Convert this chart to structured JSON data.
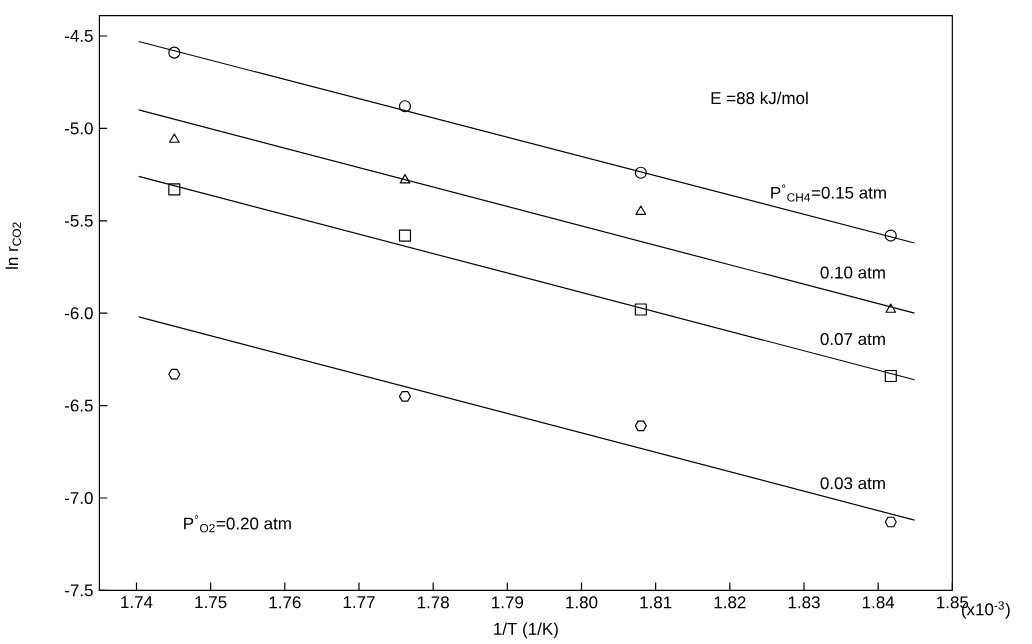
{
  "chart_data": {
    "type": "scatter",
    "xlabel": "1/T (1/K)",
    "ylabel": "ln r$_{CO2}$",
    "annotations": [
      "E =88 kJ/mol",
      "P$^{°}$$_{O2}$=0.20 atm",
      "(x10$^{-3}$)"
    ],
    "xlim": [
      1.735,
      1.85
    ],
    "ylim": [
      -7.5,
      -4.39
    ],
    "xticks": [
      1.74,
      1.75,
      1.76,
      1.77,
      1.78,
      1.79,
      {
        "value": 1.8,
        "label": "1.80"
      },
      1.81,
      1.82,
      1.83,
      1.84,
      1.85
    ],
    "yticks": [
      -4.5,
      {
        "value": -5,
        "label": "-5.0"
      },
      -5.5,
      {
        "value": -6,
        "label": "-6.0"
      },
      -6.5,
      {
        "value": -7,
        "label": "-7.0"
      },
      -7.5
    ],
    "grid": false,
    "legend": false,
    "series": [
      {
        "marker": "circle",
        "color": "#000000",
        "x": [
          1.7451,
          1.7762,
          1.808,
          1.8417
        ],
        "values": [
          -4.59,
          -4.88,
          -5.24,
          -5.58
        ]
      },
      {
        "marker": "triangle",
        "color": "#000000",
        "x": [
          1.7451,
          1.7762,
          1.808,
          1.8417
        ],
        "values": [
          -5.06,
          -5.28,
          -5.45,
          -5.98
        ]
      },
      {
        "marker": "square",
        "color": "#000000",
        "x": [
          1.7451,
          1.7762,
          1.808,
          1.8417
        ],
        "values": [
          -5.33,
          -5.58,
          -5.98,
          -6.34
        ]
      },
      {
        "color": "#000000",
        "x": [
          1.7451,
          1.7762,
          1.808,
          1.8417
        ],
        "values": [
          -6.33,
          -6.45,
          -6.61,
          -7.13
        ]
      },
      {
        "type": "line",
        "name": "P$^{°}$$_{CH4}$=0.15 atm",
        "marker": "none",
        "line_style": "solid",
        "color": "#000000",
        "x": [
          1.7403,
          1.8449
        ],
        "values": [
          -4.53,
          -5.62
        ]
      },
      {
        "type": "line",
        "name": "0.10 atm",
        "marker": "none",
        "line_style": "solid",
        "color": "#000000",
        "x": [
          1.7403,
          1.8449
        ],
        "values": [
          -4.9,
          -6.0
        ]
      },
      {
        "type": "line",
        "name": "0.07 atm",
        "marker": "none",
        "line_style": "solid",
        "color": "#000000",
        "x": [
          1.7403,
          1.8449
        ],
        "values": [
          -5.26,
          -6.36
        ]
      },
      {
        "type": "line",
        "name": "0.03 atm",
        "marker": "none",
        "line_style": "solid",
        "color": "#000000",
        "x": [
          1.7403,
          1.8449
        ],
        "values": [
          -6.02,
          -7.12
        ]
      }
    ]
  }
}
